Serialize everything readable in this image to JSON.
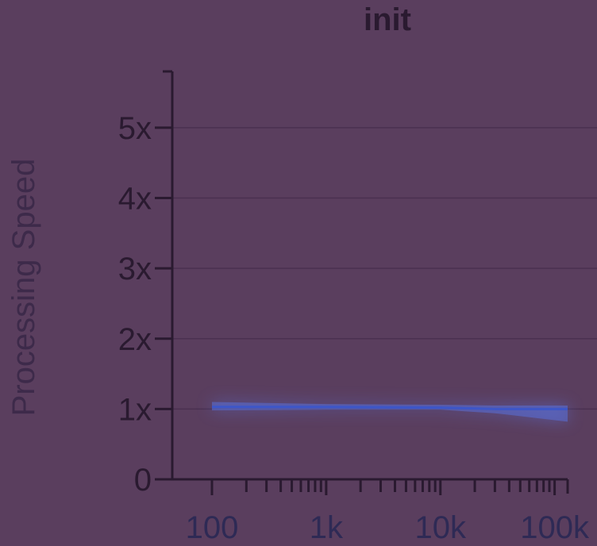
{
  "chart_data": {
    "type": "line",
    "title": "init",
    "xlabel": "",
    "ylabel": "Processing Speed",
    "x_scale": "log",
    "xlim": [
      100,
      130000
    ],
    "ylim": [
      0,
      5.8
    ],
    "x_ticks": [
      {
        "value": 100,
        "label": "100"
      },
      {
        "value": 1000,
        "label": "1k"
      },
      {
        "value": 10000,
        "label": "10k"
      },
      {
        "value": 100000,
        "label": "100k"
      }
    ],
    "y_ticks": [
      {
        "value": 0,
        "label": "0"
      },
      {
        "value": 1,
        "label": "1x"
      },
      {
        "value": 2,
        "label": "2x"
      },
      {
        "value": 3,
        "label": "3x"
      },
      {
        "value": 4,
        "label": "4x"
      },
      {
        "value": 5,
        "label": "5x"
      }
    ],
    "grid": true,
    "series": [
      {
        "color": "#5a6fd8",
        "x": [
          100,
          1000,
          10000,
          30000,
          130000
        ],
        "y": [
          1.03,
          1.03,
          1.02,
          1.0,
          1.0
        ],
        "band_low": [
          0.98,
          0.99,
          0.99,
          0.94,
          0.82
        ],
        "band_high": [
          1.1,
          1.07,
          1.06,
          1.05,
          1.05
        ]
      }
    ]
  }
}
